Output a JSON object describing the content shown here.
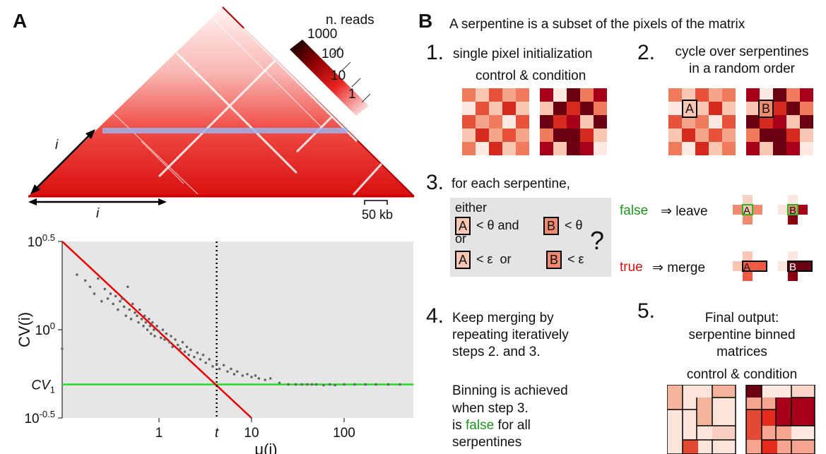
{
  "panelA": {
    "letter": "A",
    "hic": {
      "legend_title": "n. reads",
      "legend_ticks": [
        "1000",
        "100",
        "10",
        "1"
      ],
      "axis_label_i": "i",
      "scale_bar": "50 kb",
      "colors": {
        "high": "#000000",
        "mid": "#e8231f",
        "low": "#ffffff",
        "highlight": "#9db3ee"
      }
    }
  },
  "panelB": {
    "letter": "B",
    "title": "A serpentine is a subset of the pixels of the matrix",
    "step1": {
      "num": "1.",
      "text": "single pixel initialization",
      "subtitle": "control & condition"
    },
    "step2": {
      "num": "2.",
      "text_line1": "cycle over serpentines",
      "text_line2": "in a random order",
      "label_a": "A",
      "label_b": "B"
    },
    "step3": {
      "num": "3.",
      "text": "for each serpentine,",
      "either": "either",
      "line1_a": "A",
      "line1_op1": "< θ and",
      "line1_b": "B",
      "line1_op2": "< θ",
      "or": "or",
      "line2_a": "A",
      "line2_op1": "< ε  or",
      "line2_b": "B",
      "line2_op2": "< ε",
      "question": "?",
      "false_word": "false",
      "false_action": "⇒ leave",
      "true_word": "true",
      "true_action": "⇒ merge",
      "label_a": "A",
      "label_b": "B"
    },
    "step4": {
      "num": "4.",
      "lines": [
        "Keep merging by",
        "repeating iteratively",
        "steps 2. and 3."
      ],
      "binning_lines": [
        "Binning is achieved",
        "when step 3."
      ],
      "is_word": "is",
      "false_word": "false",
      "for_all": "for all",
      "last_line": "serpentines"
    },
    "step5": {
      "num": "5.",
      "lines": [
        "Final output:",
        "serpentine binned",
        "matrices"
      ],
      "subtitle": "control & condition"
    }
  },
  "chart_data": {
    "type": "scatter",
    "title": "",
    "xlabel": "μ(i)",
    "ylabel": "CV(i)",
    "xscale": "log",
    "yscale": "log",
    "xlim": [
      0.09,
      560
    ],
    "ylim": [
      0.3162,
      3.1623
    ],
    "x_ticks": [
      "1",
      "10",
      "100"
    ],
    "y_ticks": [
      "10^0.5",
      "10^0",
      "10^-0.5"
    ],
    "annotations": {
      "threshold_x_label": "t",
      "cv1_label": "CV1"
    },
    "threshold_t": 4.2,
    "cv1": 0.49,
    "red_line": {
      "points": [
        [
          0.09,
          3.1623
        ],
        [
          10,
          0.3162
        ]
      ],
      "color": "#f00000"
    },
    "green_line": {
      "y": 0.49,
      "color": "#22dd22"
    },
    "grid": false,
    "background": "#e6e6e6",
    "series": [
      {
        "color": "#666666",
        "points": [
          [
            0.09,
            0.78
          ],
          [
            0.13,
            2.05
          ],
          [
            0.16,
            1.9
          ],
          [
            0.18,
            1.75
          ],
          [
            0.2,
            1.6
          ],
          [
            0.22,
            1.95
          ],
          [
            0.24,
            1.45
          ],
          [
            0.26,
            1.7
          ],
          [
            0.28,
            1.5
          ],
          [
            0.3,
            1.6
          ],
          [
            0.32,
            1.4
          ],
          [
            0.34,
            1.55
          ],
          [
            0.36,
            1.3
          ],
          [
            0.38,
            1.45
          ],
          [
            0.4,
            1.5
          ],
          [
            0.42,
            1.35
          ],
          [
            0.44,
            1.2
          ],
          [
            0.46,
            1.75
          ],
          [
            0.48,
            1.3
          ],
          [
            0.5,
            1.15
          ],
          [
            0.52,
            1.4
          ],
          [
            0.55,
            1.25
          ],
          [
            0.58,
            1.2
          ],
          [
            0.6,
            1.1
          ],
          [
            0.62,
            1.3
          ],
          [
            0.65,
            1.15
          ],
          [
            0.68,
            1.05
          ],
          [
            0.7,
            1.2
          ],
          [
            0.72,
            1.1
          ],
          [
            0.75,
            1.0
          ],
          [
            0.78,
            1.15
          ],
          [
            0.8,
            1.05
          ],
          [
            0.82,
            0.95
          ],
          [
            0.85,
            1.1
          ],
          [
            0.88,
            1.0
          ],
          [
            0.9,
            0.92
          ],
          [
            0.95,
            1.05
          ],
          [
            1.0,
            0.98
          ],
          [
            1.05,
            0.9
          ],
          [
            1.1,
            1.0
          ],
          [
            1.15,
            0.88
          ],
          [
            1.2,
            0.95
          ],
          [
            1.3,
            0.85
          ],
          [
            1.35,
            0.92
          ],
          [
            1.4,
            0.8
          ],
          [
            1.5,
            0.88
          ],
          [
            1.6,
            0.82
          ],
          [
            1.7,
            0.78
          ],
          [
            1.8,
            0.85
          ],
          [
            1.9,
            0.75
          ],
          [
            2.0,
            0.8
          ],
          [
            2.1,
            0.72
          ],
          [
            2.2,
            0.77
          ],
          [
            2.4,
            0.7
          ],
          [
            2.6,
            0.74
          ],
          [
            2.8,
            0.68
          ],
          [
            3.0,
            0.72
          ],
          [
            3.2,
            0.65
          ],
          [
            3.5,
            0.68
          ],
          [
            3.8,
            0.62
          ],
          [
            4.2,
            0.64
          ],
          [
            4.5,
            0.6
          ],
          [
            5.0,
            0.63
          ],
          [
            5.5,
            0.58
          ],
          [
            6.0,
            0.6
          ],
          [
            6.5,
            0.56
          ],
          [
            7.0,
            0.58
          ],
          [
            8.0,
            0.55
          ],
          [
            9.0,
            0.56
          ],
          [
            10.0,
            0.54
          ],
          [
            11.0,
            0.55
          ],
          [
            12.0,
            0.53
          ],
          [
            14.0,
            0.52
          ],
          [
            16.0,
            0.53
          ],
          [
            20.0,
            0.5
          ],
          [
            25.0,
            0.49
          ],
          [
            30.0,
            0.49
          ],
          [
            35.0,
            0.49
          ],
          [
            40.0,
            0.49
          ],
          [
            45.0,
            0.49
          ],
          [
            50.0,
            0.49
          ],
          [
            60.0,
            0.485
          ],
          [
            70.0,
            0.49
          ],
          [
            80.0,
            0.485
          ],
          [
            100.0,
            0.49
          ],
          [
            130.0,
            0.49
          ],
          [
            170.0,
            0.49
          ],
          [
            220.0,
            0.49
          ],
          [
            300.0,
            0.49
          ],
          [
            400.0,
            0.49
          ]
        ]
      }
    ]
  }
}
